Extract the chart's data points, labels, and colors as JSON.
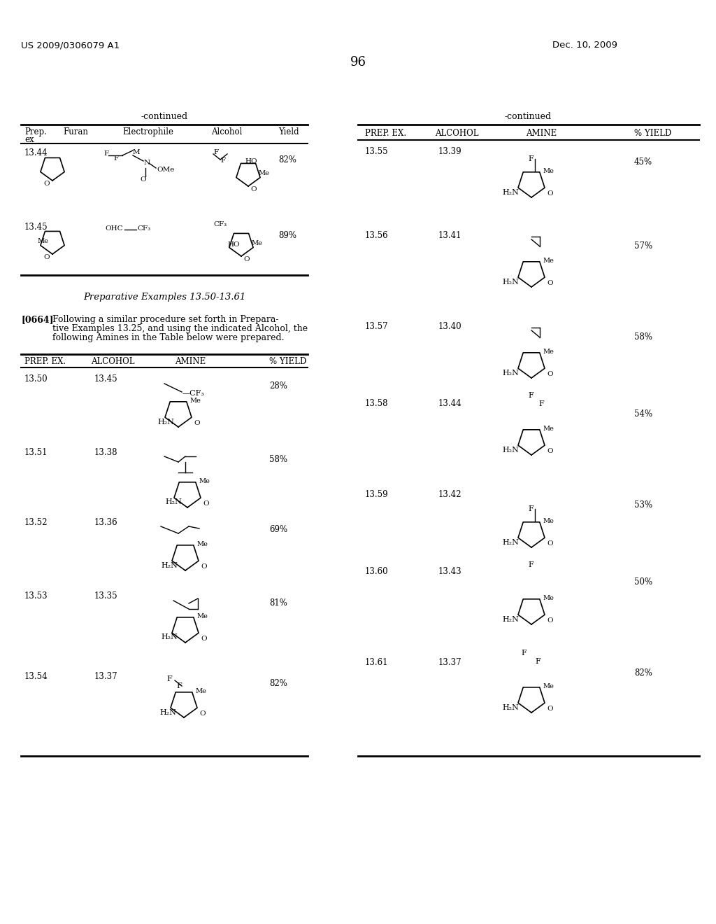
{
  "page_number": "96",
  "patent_number": "US 2009/0306079 A1",
  "patent_date": "Dec. 10, 2009",
  "background_color": "#ffffff",
  "text_color": "#000000",
  "left_table": {
    "continued_label": "-continued",
    "headers": [
      "Prep.\nex",
      "Furan",
      "Electrophile",
      "Alcohol",
      "Yield"
    ],
    "rows": [
      {
        "id": "13.44",
        "yield": "82%"
      },
      {
        "id": "13.45",
        "yield": "89%"
      }
    ]
  },
  "right_table_top": {
    "continued_label": "-continued",
    "headers": [
      "PREP. EX.",
      "ALCOHOL",
      "AMINE",
      "% YIELD"
    ],
    "rows": [
      {
        "prep_ex": "13.55",
        "alcohol": "13.39",
        "yield": "45%"
      },
      {
        "prep_ex": "13.56",
        "alcohol": "13.41",
        "yield": "57%"
      },
      {
        "prep_ex": "13.57",
        "alcohol": "13.40",
        "yield": "58%"
      },
      {
        "prep_ex": "13.58",
        "alcohol": "13.44",
        "yield": "54%"
      }
    ]
  },
  "prep_examples_title": "Preparative Examples 13.50-13.61",
  "paragraph_label": "[0664]",
  "paragraph_text": "Following a similar procedure set forth in Preparative Examples 13.25, and using the indicated Alcohol, the following Amines in the Table below were prepared.",
  "left_table_bottom": {
    "headers": [
      "PREP. EX.",
      "ALCOHOL",
      "AMINE",
      "% YIELD"
    ],
    "rows": [
      {
        "prep_ex": "13.50",
        "alcohol": "13.45",
        "yield": "28%"
      },
      {
        "prep_ex": "13.51",
        "alcohol": "13.38",
        "yield": "58%"
      },
      {
        "prep_ex": "13.52",
        "alcohol": "13.36",
        "yield": "69%"
      },
      {
        "prep_ex": "13.53",
        "alcohol": "13.35",
        "yield": "81%"
      },
      {
        "prep_ex": "13.54",
        "alcohol": "13.37",
        "yield": "82%"
      }
    ]
  },
  "right_table_bottom": {
    "rows": [
      {
        "prep_ex": "13.59",
        "alcohol": "13.42",
        "yield": "53%"
      },
      {
        "prep_ex": "13.60",
        "alcohol": "13.43",
        "yield": "50%"
      },
      {
        "prep_ex": "13.61",
        "alcohol": "13.37",
        "yield": "82%"
      }
    ]
  }
}
